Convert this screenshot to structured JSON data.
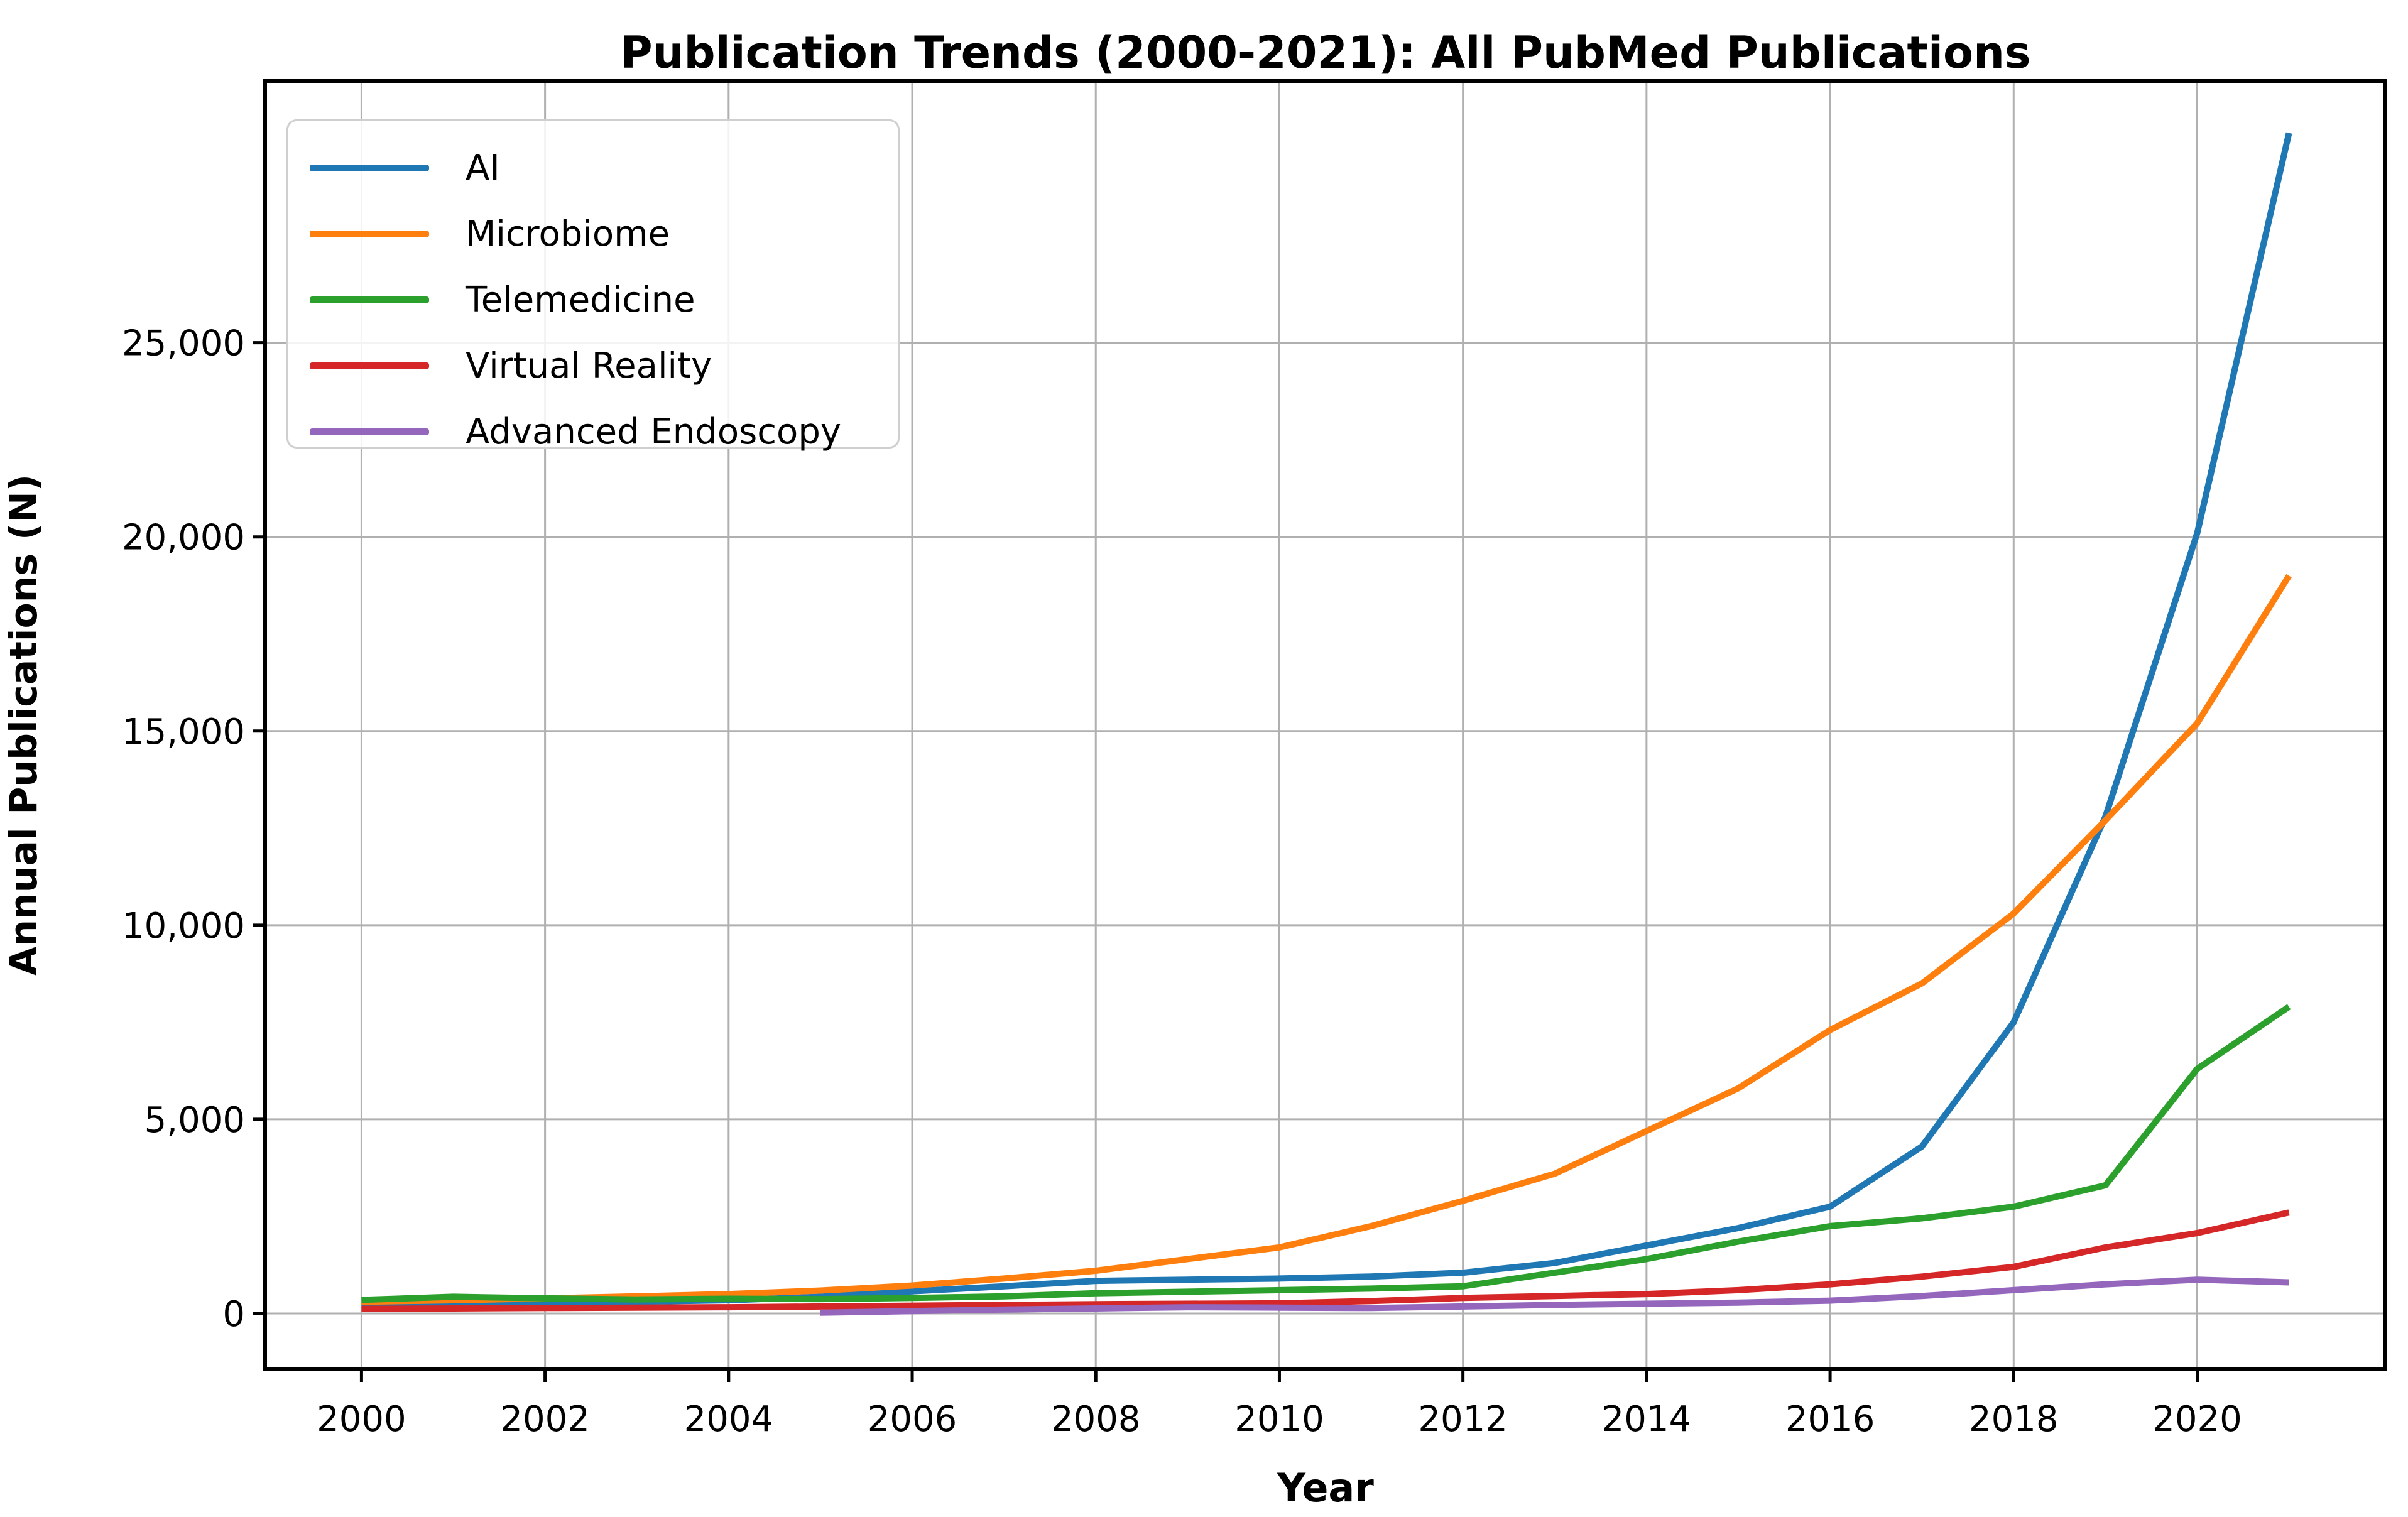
{
  "title": "Publication Trends (2000-2021): All PubMed Publications",
  "x_axis": {
    "title": "Year",
    "tick_years": [
      2000,
      2002,
      2004,
      2006,
      2008,
      2010,
      2012,
      2014,
      2016,
      2018,
      2020
    ],
    "tick_labels": [
      "2000",
      "2002",
      "2004",
      "2006",
      "2008",
      "2010",
      "2012",
      "2014",
      "2016",
      "2018",
      "2020"
    ]
  },
  "y_axis": {
    "title": "Annual Publications (N)",
    "tick_values": [
      0,
      5000,
      10000,
      15000,
      20000,
      25000
    ],
    "tick_labels": [
      "0",
      "5,000",
      "10,000",
      "15,000",
      "20,000",
      "25,000"
    ]
  },
  "colors": {
    "grid": "#b0b0b0",
    "spine": "#000000",
    "background": "#ffffff"
  },
  "chart_data": {
    "type": "line",
    "title": "Publication Trends (2000-2021): All PubMed Publications",
    "xlabel": "Year",
    "ylabel": "Annual Publications (N)",
    "grid": true,
    "legend_position": "upper left",
    "xlim": [
      1998.95,
      2022.05
    ],
    "ylim": [
      -1440,
      31740
    ],
    "x": [
      2000,
      2001,
      2002,
      2003,
      2004,
      2005,
      2006,
      2007,
      2008,
      2009,
      2010,
      2011,
      2012,
      2013,
      2014,
      2015,
      2016,
      2017,
      2018,
      2019,
      2020,
      2021
    ],
    "series": [
      {
        "name": "AI",
        "color": "#1f77b4",
        "values": [
          200,
          230,
          260,
          300,
          340,
          430,
          570,
          700,
          840,
          870,
          900,
          950,
          1050,
          1300,
          1750,
          2200,
          2750,
          4300,
          7500,
          12800,
          20100,
          30400
        ]
      },
      {
        "name": "Microbiome",
        "color": "#ff7f0e",
        "values": [
          300,
          340,
          390,
          440,
          500,
          590,
          720,
          900,
          1100,
          1400,
          1700,
          2250,
          2900,
          3600,
          4700,
          5800,
          7300,
          8500,
          10300,
          12700,
          15200,
          19000
        ]
      },
      {
        "name": "Telemedicine",
        "color": "#2ca02c",
        "values": [
          350,
          430,
          390,
          360,
          380,
          370,
          400,
          440,
          520,
          560,
          600,
          640,
          700,
          1050,
          1400,
          1850,
          2250,
          2450,
          2750,
          3300,
          6300,
          7900
        ]
      },
      {
        "name": "Virtual Reality",
        "color": "#d62728",
        "values": [
          120,
          130,
          140,
          150,
          160,
          180,
          200,
          220,
          240,
          250,
          260,
          320,
          400,
          450,
          500,
          600,
          750,
          950,
          1200,
          1700,
          2070,
          2600
        ]
      },
      {
        "name": "Advanced Endoscopy",
        "color": "#9467bd",
        "values": [
          null,
          null,
          null,
          null,
          null,
          20,
          60,
          100,
          130,
          160,
          150,
          140,
          180,
          220,
          250,
          280,
          330,
          450,
          600,
          750,
          870,
          800
        ]
      }
    ]
  }
}
